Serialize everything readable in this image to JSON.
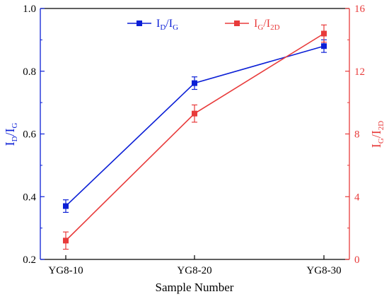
{
  "chart_data": {
    "type": "line",
    "categories": [
      "YG8-10",
      "YG8-20",
      "YG8-30"
    ],
    "xlabel": "Sample Number",
    "y_left": {
      "label_main": "I",
      "label_sub1": "D",
      "label_mid": "/I",
      "label_sub2": "G",
      "ylim": [
        0.2,
        1.0
      ],
      "ticks": [
        "0.2",
        "0.4",
        "0.6",
        "0.8",
        "1.0"
      ],
      "color": "#0b1fd6"
    },
    "y_right": {
      "label_main": "I",
      "label_sub1": "G",
      "label_mid": "/I",
      "label_sub2": "2D",
      "ylim": [
        0,
        16
      ],
      "ticks": [
        "0",
        "4",
        "8",
        "12",
        "16"
      ],
      "color": "#e83b3b"
    },
    "series": [
      {
        "name_main": "I",
        "name_sub1": "D",
        "name_mid": "/I",
        "name_sub2": "G",
        "axis": "left",
        "color": "#0b1fd6",
        "values": [
          0.37,
          0.762,
          0.88
        ],
        "errors": [
          0.02,
          0.02,
          0.02
        ]
      },
      {
        "name_main": "I",
        "name_sub1": "G",
        "name_mid": "/I",
        "name_sub2": "2D",
        "axis": "right",
        "color": "#e83b3b",
        "values": [
          1.2,
          9.3,
          14.4
        ],
        "errors": [
          0.55,
          0.55,
          0.55
        ]
      }
    ],
    "legend_position": "top-center",
    "grid": false
  }
}
